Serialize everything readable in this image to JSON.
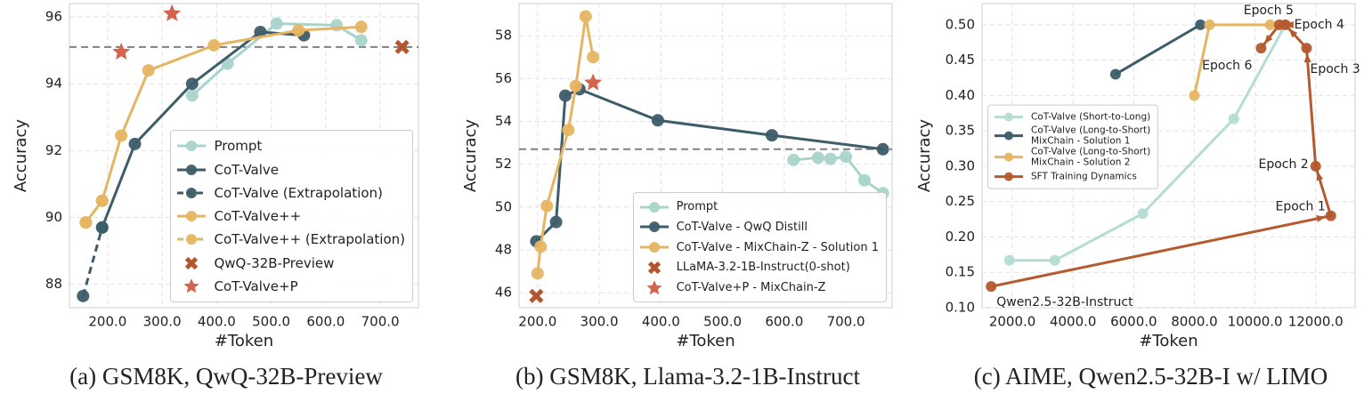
{
  "chart_data": [
    {
      "type": "line",
      "caption": "(a) GSM8K, QwQ-32B-Preview",
      "xlabel": "#Token",
      "ylabel": "Accuracy",
      "xlim": [
        130,
        770
      ],
      "ylim": [
        87.3,
        96.4
      ],
      "xticks": [
        {
          "value": 200,
          "label": "200.0"
        },
        {
          "value": 300,
          "label": "300.0"
        },
        {
          "value": 400,
          "label": "400.0"
        },
        {
          "value": 500,
          "label": "500.0"
        },
        {
          "value": 600,
          "label": "600.0"
        },
        {
          "value": 700,
          "label": "700.0"
        }
      ],
      "yticks": [
        88,
        90,
        92,
        94,
        96
      ],
      "grid": true,
      "hline": 95.1,
      "hline_color": "#808080",
      "legend": "lower right",
      "series": [
        {
          "name": "Prompt",
          "color": "#a9d4cb",
          "marker": "o",
          "linestyle": "solid",
          "x": [
            355,
            420,
            510,
            620,
            665
          ],
          "y": [
            93.65,
            94.6,
            95.8,
            95.75,
            95.3
          ]
        },
        {
          "name": "CoT-Valve",
          "color": "#3d5d69",
          "marker": "o",
          "linestyle": "solid",
          "x": [
            190,
            250,
            355,
            480,
            560
          ],
          "y": [
            89.7,
            92.2,
            94.0,
            95.55,
            95.45
          ]
        },
        {
          "name": "CoT-Valve (Extrapolation)",
          "color": "#3d5d69",
          "marker": "o",
          "linestyle": "dashed",
          "x": [
            155,
            190
          ],
          "y": [
            87.65,
            89.7
          ]
        },
        {
          "name": "CoT-Valve++",
          "color": "#e6b563",
          "marker": "o",
          "linestyle": "solid",
          "x": [
            160,
            190,
            225,
            275,
            395,
            550,
            665
          ],
          "y": [
            89.85,
            90.5,
            92.45,
            94.4,
            95.15,
            95.6,
            95.7
          ]
        },
        {
          "name": "CoT-Valve++ (Extrapolation)",
          "color": "#e6b563",
          "marker": "o",
          "linestyle": "dashed",
          "x": [
            160,
            190
          ],
          "y": [
            89.85,
            90.5
          ]
        },
        {
          "name": "QwQ-32B-Preview",
          "color": "#b3562f",
          "marker": "x",
          "linestyle": "none",
          "x": [
            740
          ],
          "y": [
            95.1
          ]
        },
        {
          "name": "CoT-Valve+P",
          "color": "#d4644d",
          "marker": "*",
          "linestyle": "none",
          "x": [
            225,
            318
          ],
          "y": [
            94.95,
            96.1
          ]
        }
      ]
    },
    {
      "type": "line",
      "caption": "(b) GSM8K, Llama-3.2-1B-Instruct",
      "xlabel": "#Token",
      "ylabel": "Accuracy",
      "xlim": [
        170,
        775
      ],
      "ylim": [
        45.3,
        59.5
      ],
      "xticks": [
        {
          "value": 200,
          "label": "200.0"
        },
        {
          "value": 300,
          "label": "300.0"
        },
        {
          "value": 400,
          "label": "400.0"
        },
        {
          "value": 500,
          "label": "500.0"
        },
        {
          "value": 600,
          "label": "600.0"
        },
        {
          "value": 700,
          "label": "700.0"
        }
      ],
      "yticks": [
        46,
        48,
        50,
        52,
        54,
        56,
        58
      ],
      "grid": true,
      "hline": 52.7,
      "hline_color": "#808080",
      "legend": "lower right",
      "series": [
        {
          "name": "Prompt",
          "color": "#a9d4cb",
          "marker": "o",
          "linestyle": "solid",
          "x": [
            615,
            655,
            675,
            700,
            730,
            760
          ],
          "y": [
            52.2,
            52.3,
            52.25,
            52.35,
            51.25,
            50.65
          ]
        },
        {
          "name": "CoT-Valve - QwQ Distill",
          "color": "#3d5d69",
          "marker": "o",
          "linestyle": "solid",
          "x": [
            198,
            230,
            245,
            268,
            395,
            580,
            760
          ],
          "y": [
            48.4,
            49.3,
            55.2,
            55.5,
            54.05,
            53.35,
            52.7
          ]
        },
        {
          "name": "CoT-Valve - MixChain-Z - Solution 1",
          "color": "#e6b563",
          "marker": "o",
          "linestyle": "solid",
          "x": [
            200,
            205,
            215,
            250,
            262,
            278,
            290
          ],
          "y": [
            46.9,
            48.15,
            50.05,
            53.6,
            55.65,
            58.9,
            57.0
          ]
        },
        {
          "name": "LLaMA-3.2-1B-Instruct(0-shot)",
          "color": "#b3562f",
          "marker": "x",
          "linestyle": "none",
          "x": [
            198
          ],
          "y": [
            45.85
          ]
        },
        {
          "name": "CoT-Valve+P - MixChain-Z",
          "color": "#d4644d",
          "marker": "*",
          "linestyle": "none",
          "x": [
            290
          ],
          "y": [
            55.8
          ]
        }
      ]
    },
    {
      "type": "line",
      "caption": "(c) AIME, Qwen2.5-32B-I w/ LIMO",
      "xlabel": "#Token",
      "ylabel": "Accuracy",
      "xlim": [
        1000,
        13300
      ],
      "ylim": [
        0.1,
        0.53
      ],
      "xticks": [
        {
          "value": 2000,
          "label": "2000.0"
        },
        {
          "value": 4000,
          "label": "4000.0"
        },
        {
          "value": 6000,
          "label": "6000.0"
        },
        {
          "value": 8000,
          "label": "8000.0"
        },
        {
          "value": 10000,
          "label": "10000.0"
        },
        {
          "value": 12000,
          "label": "12000.0"
        }
      ],
      "yticks": [
        {
          "value": 0.1,
          "label": "0.10"
        },
        0.15,
        {
          "value": 0.2,
          "label": "0.20"
        },
        0.25,
        {
          "value": 0.3,
          "label": "0.30"
        },
        0.35,
        {
          "value": 0.4,
          "label": "0.40"
        },
        0.45,
        {
          "value": 0.5,
          "label": "0.50"
        }
      ],
      "grid": true,
      "legend": "center left",
      "series": [
        {
          "name": "CoT-Valve (Short-to-Long)",
          "color": "#b5dcd3",
          "marker": "o",
          "linestyle": "solid",
          "x": [
            1900,
            3400,
            6300,
            9300,
            11000
          ],
          "y": [
            0.167,
            0.167,
            0.233,
            0.367,
            0.5
          ]
        },
        {
          "name": "CoT-Valve (Long-to-Short)\nMixChain - Solution 1",
          "color": "#3d5d69",
          "marker": "o",
          "linestyle": "solid",
          "x": [
            5400,
            8200
          ],
          "y": [
            0.43,
            0.5
          ]
        },
        {
          "name": "CoT-Valve (Long-to-Short)\nMixChain - Solution 2",
          "color": "#e6b563",
          "marker": "o",
          "linestyle": "solid",
          "x": [
            8000,
            8500,
            10500,
            11000
          ],
          "y": [
            0.4,
            0.5,
            0.5,
            0.5
          ]
        },
        {
          "name": "SFT Training Dynamics",
          "color": "#b45a2e",
          "marker": "o",
          "linestyle": "solid",
          "arrows": true,
          "x": [
            1300,
            12500,
            12000,
            11700,
            11000,
            10800,
            10200
          ],
          "y": [
            0.13,
            0.23,
            0.3,
            0.467,
            0.5,
            0.5,
            0.467
          ],
          "point_labels": [
            "Qwen2.5-32B-Instruct",
            "Epoch 1",
            "Epoch 2",
            "Epoch 3",
            "Epoch 4",
            "Epoch 5",
            "Epoch 6"
          ]
        }
      ]
    }
  ]
}
